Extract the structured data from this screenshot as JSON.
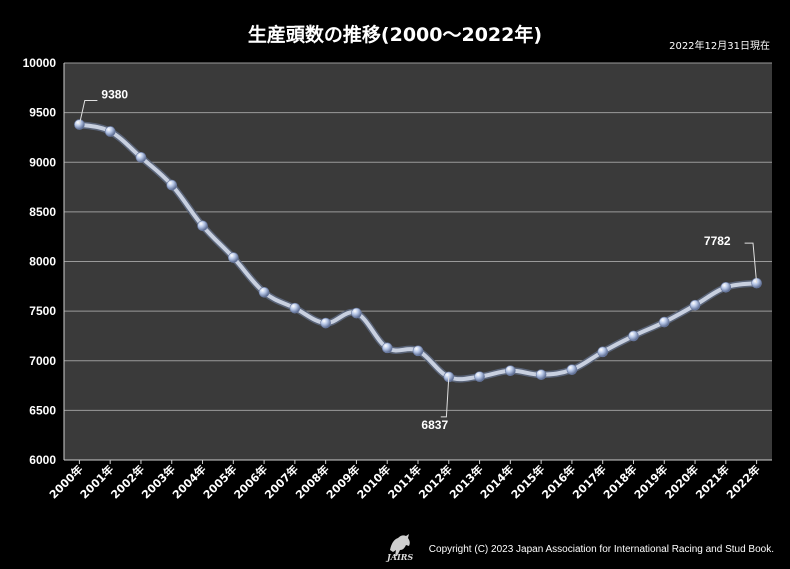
{
  "chart_data": {
    "type": "line",
    "title": "生産頭数の推移(2000～2022年)",
    "as_of": "2022年12月31日現在",
    "categories": [
      "2000年",
      "2001年",
      "2002年",
      "2003年",
      "2004年",
      "2005年",
      "2006年",
      "2007年",
      "2008年",
      "2009年",
      "2010年",
      "2011年",
      "2012年",
      "2013年",
      "2014年",
      "2015年",
      "2016年",
      "2017年",
      "2018年",
      "2019年",
      "2020年",
      "2021年",
      "2022年"
    ],
    "series": [
      {
        "values": [
          9380,
          9310,
          9050,
          8770,
          8360,
          8040,
          7690,
          7530,
          7380,
          7480,
          7130,
          7100,
          6837,
          6840,
          6900,
          6860,
          6910,
          7090,
          7250,
          7390,
          7560,
          7740,
          7782
        ],
        "color": "#c8d0e0"
      }
    ],
    "annotations": [
      {
        "category": "2000年",
        "text": "9380"
      },
      {
        "category": "2012年",
        "text": "6837"
      },
      {
        "category": "2022年",
        "text": "7782"
      }
    ],
    "ylim": [
      6000,
      10000
    ],
    "yticks": [
      "6000",
      "6500",
      "7000",
      "7500",
      "8000",
      "8500",
      "9000",
      "9500",
      "10000"
    ],
    "grid": true,
    "plot_background": "#3a3a3a",
    "page_background": "#000000"
  },
  "footer": {
    "copyright": "Copyright (C) 2023 Japan Association for International Racing and Stud Book.",
    "logo_text": "JAIRS"
  }
}
